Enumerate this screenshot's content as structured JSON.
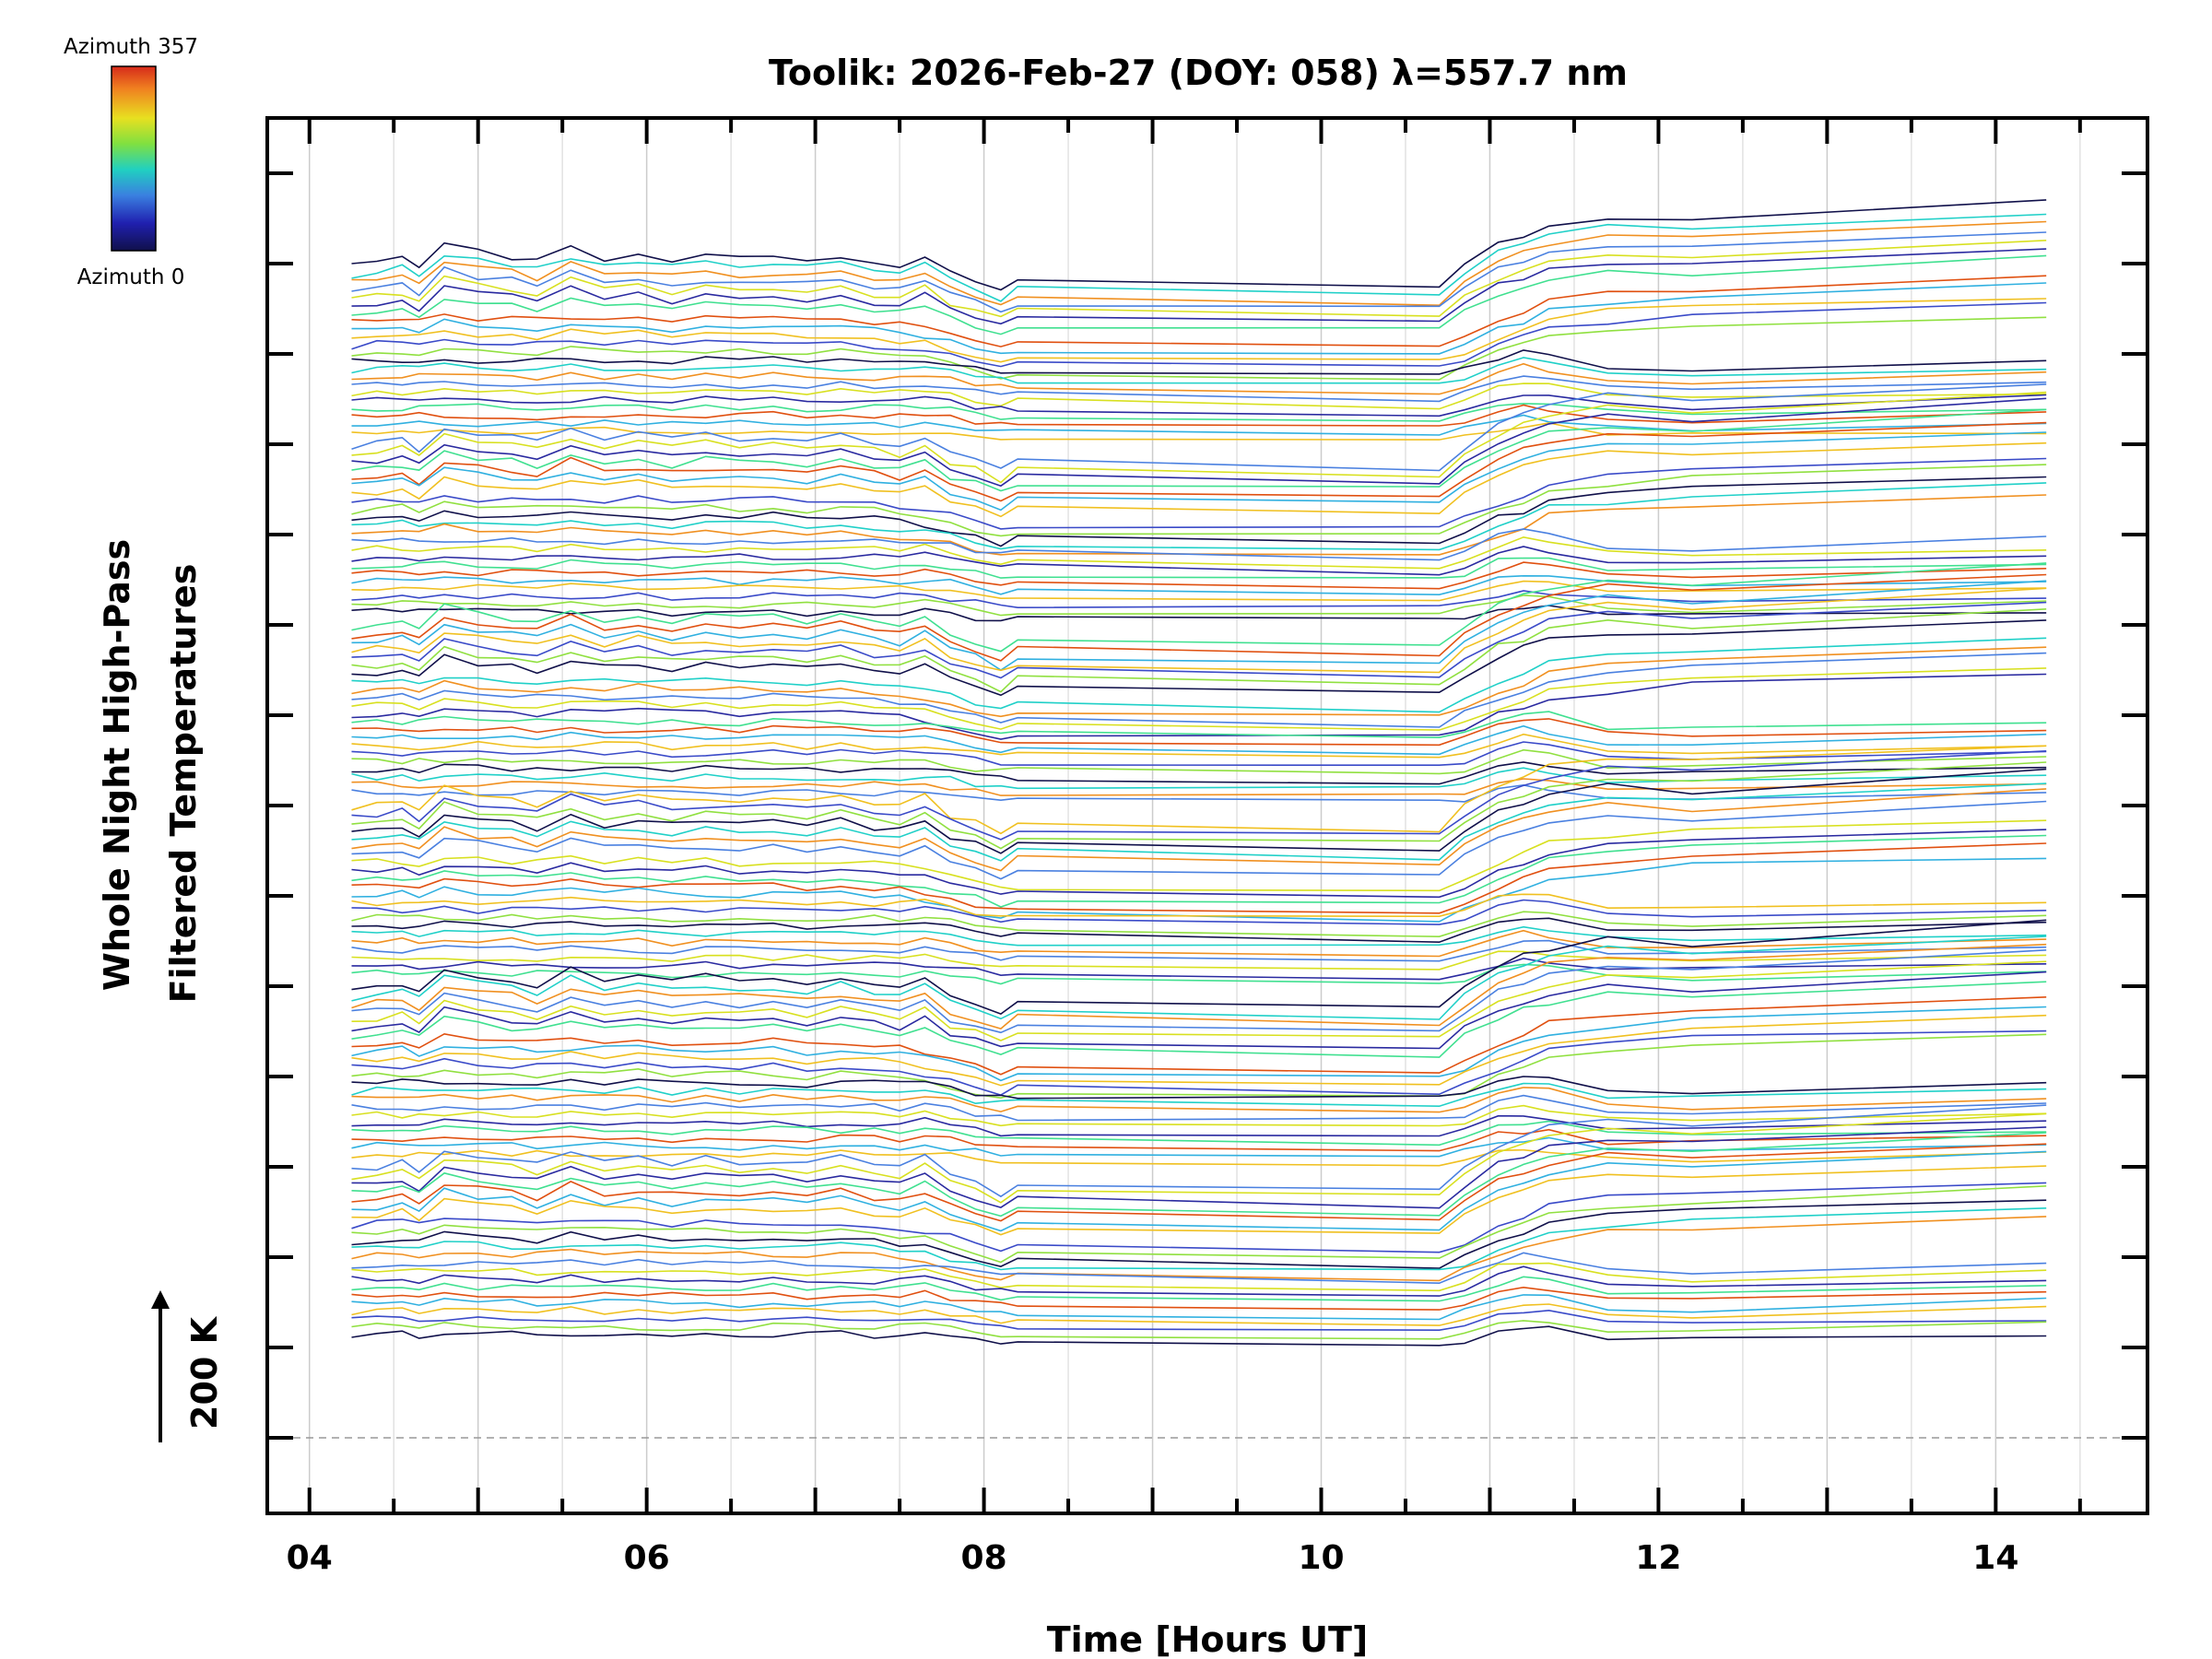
{
  "chart_data": {
    "type": "line",
    "title": "Toolik: 2026-Feb-27 (DOY: 058) λ=557.7 nm",
    "xlabel": "Time [Hours UT]",
    "ylabel_line1": "Whole Night High-Pass",
    "ylabel_line2": "Filtered Temperatures",
    "scale_label": "200 K",
    "xlim": [
      3.75,
      14.9
    ],
    "x_tick_labels": [
      "04",
      "06",
      "08",
      "10",
      "12",
      "14"
    ],
    "x_tick_values": [
      4,
      6,
      8,
      10,
      12,
      14
    ],
    "colorbar": {
      "top_label": "Azimuth 357",
      "bottom_label": "Azimuth 0",
      "colors": [
        "#d62a1a",
        "#f0a020",
        "#e8e020",
        "#80e040",
        "#20d0c0",
        "#3a80e0",
        "#2020b0",
        "#10104a"
      ]
    },
    "line_colors": [
      "#10104a",
      "#2a2aa0",
      "#3a4ac8",
      "#4a80e0",
      "#30b0e0",
      "#20d0c8",
      "#40e090",
      "#90e040",
      "#d8e020",
      "#f0c020",
      "#f09020",
      "#e05010"
    ],
    "grid": true,
    "time_samples": [
      4.25,
      4.4,
      4.55,
      4.65,
      4.8,
      5.0,
      5.2,
      5.35,
      5.55,
      5.75,
      5.95,
      6.15,
      6.35,
      6.55,
      6.75,
      6.95,
      7.15,
      7.35,
      7.5,
      7.65,
      7.8,
      7.95,
      8.1,
      8.2,
      10.7,
      10.85,
      11.05,
      11.2,
      11.35,
      11.7,
      12.2,
      14.3
    ],
    "profiles": {
      "low_azimuth": [
        0,
        4,
        8,
        -2,
        24,
        16,
        12,
        6,
        22,
        10,
        16,
        8,
        14,
        10,
        12,
        8,
        14,
        6,
        2,
        14,
        -6,
        -14,
        -26,
        -14,
        -22,
        2,
        26,
        36,
        46,
        56,
        50,
        72
      ],
      "high_azimuth": [
        0,
        2,
        4,
        0,
        10,
        6,
        4,
        2,
        8,
        4,
        6,
        2,
        4,
        2,
        4,
        0,
        4,
        0,
        -4,
        -8,
        -16,
        -26,
        -36,
        -30,
        -36,
        -22,
        0,
        12,
        28,
        38,
        46,
        62
      ],
      "mid_azimuth": [
        0,
        2,
        2,
        0,
        4,
        2,
        2,
        0,
        4,
        2,
        2,
        0,
        2,
        0,
        2,
        0,
        2,
        0,
        0,
        4,
        -4,
        -14,
        -20,
        -18,
        -26,
        -14,
        8,
        18,
        14,
        -8,
        -12,
        4
      ]
    },
    "groups": 6,
    "lines_per_group": 22
  }
}
